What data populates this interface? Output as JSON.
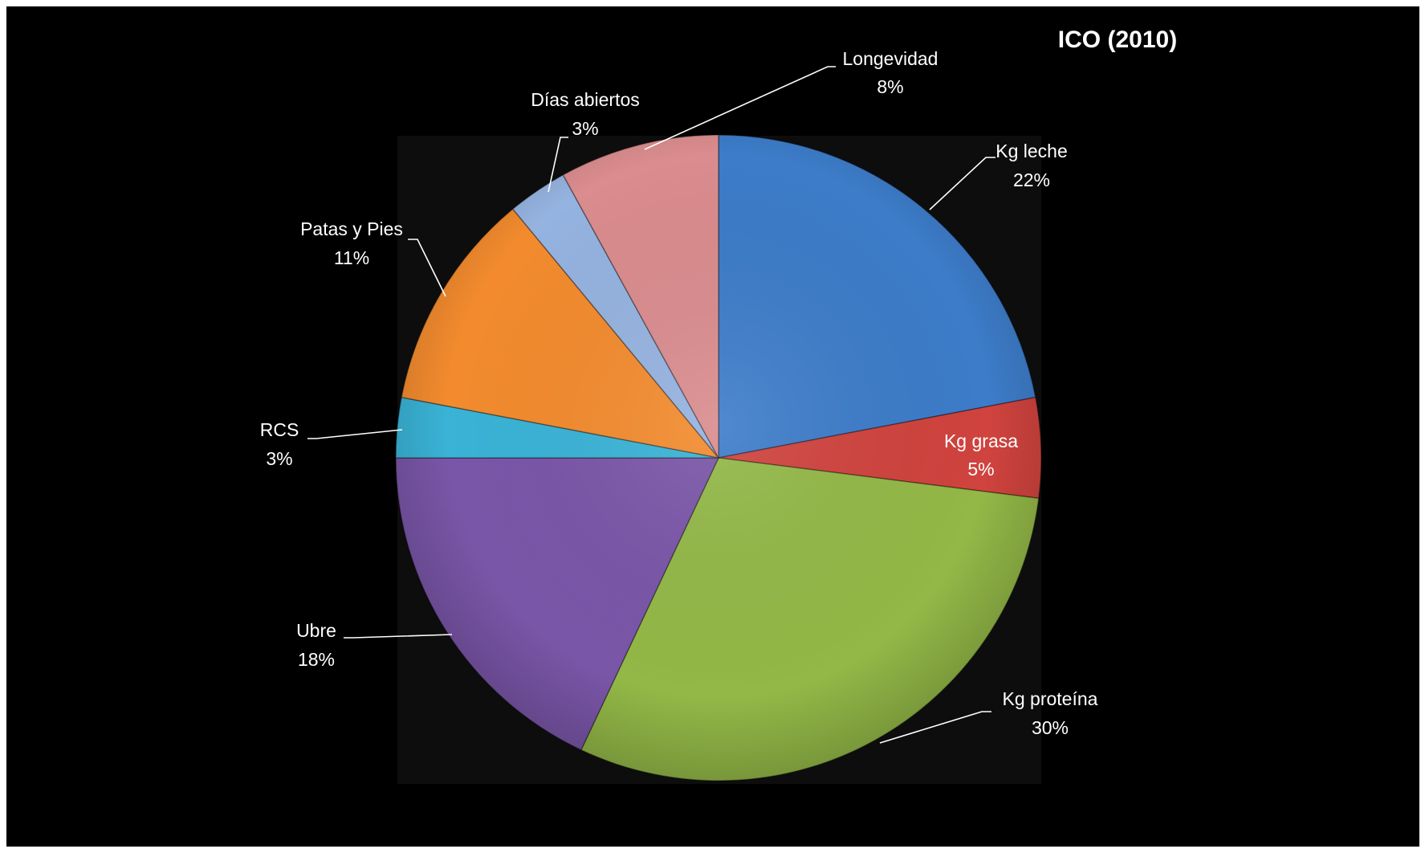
{
  "chart_data": {
    "type": "pie",
    "title": "ICO (2010)",
    "slices": [
      {
        "label": "Kg leche",
        "value": 22,
        "value_label": "22%",
        "color": "#3D7CC9"
      },
      {
        "label": "Kg grasa",
        "value": 5,
        "value_label": "5%",
        "color": "#D0433E"
      },
      {
        "label": "Kg proteína",
        "value": 30,
        "value_label": "30%",
        "color": "#93B847"
      },
      {
        "label": "Ubre",
        "value": 18,
        "value_label": "18%",
        "color": "#7A56A8"
      },
      {
        "label": "RCS",
        "value": 3,
        "value_label": "3%",
        "color": "#3AB3D6"
      },
      {
        "label": "Patas y Pies",
        "value": 11,
        "value_label": "11%",
        "color": "#F38B2E"
      },
      {
        "label": "Días abiertos",
        "value": 3,
        "value_label": "3%",
        "color": "#95B3E0"
      },
      {
        "label": "Longevidad",
        "value": 8,
        "value_label": "8%",
        "color": "#DA8C8E"
      }
    ],
    "legend": "none",
    "labels_placement": "outside-with-leaders"
  }
}
